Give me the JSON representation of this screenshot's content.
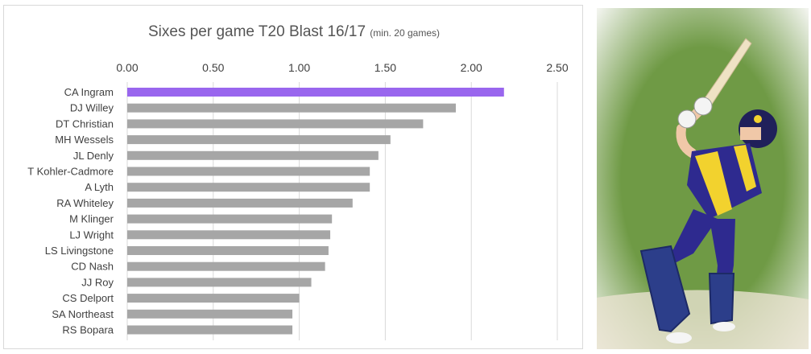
{
  "chart_data": {
    "type": "bar",
    "orientation": "horizontal",
    "title": "Sixes per game T20 Blast 16/17",
    "subtitle": "(min. 20 games)",
    "xlabel": "",
    "ylabel": "",
    "xlim": [
      0,
      2.5
    ],
    "ticks": [
      "0.00",
      "0.50",
      "1.00",
      "1.50",
      "2.00",
      "2.50"
    ],
    "tick_values": [
      0,
      0.5,
      1.0,
      1.5,
      2.0,
      2.5
    ],
    "tick_position": "top",
    "grid": true,
    "categories": [
      "CA Ingram",
      "DJ Willey",
      "DT Christian",
      "MH Wessels",
      "JL Denly",
      "T Kohler-Cadmore",
      "A Lyth",
      "RA Whiteley",
      "M Klinger",
      "LJ Wright",
      "LS Livingstone",
      "CD Nash",
      "JJ Roy",
      "CS Delport",
      "SA Northeast",
      "RS Bopara"
    ],
    "values": [
      2.19,
      1.91,
      1.72,
      1.53,
      1.46,
      1.41,
      1.41,
      1.31,
      1.19,
      1.18,
      1.17,
      1.15,
      1.07,
      1.0,
      0.96,
      0.96
    ],
    "colors": {
      "highlight": "#9966ee",
      "default": "#a6a6a6",
      "grid": "#d9d9d9",
      "text": "#404040",
      "title": "#555555"
    },
    "highlight_index": 0
  },
  "photo": {
    "icon": "cricket-batsman-photo",
    "colors": {
      "grass": "#5f8a3c",
      "shirt_blue": "#2e2a8f",
      "shirt_yellow": "#f2d22e",
      "pad": "#2c3e8a"
    }
  }
}
